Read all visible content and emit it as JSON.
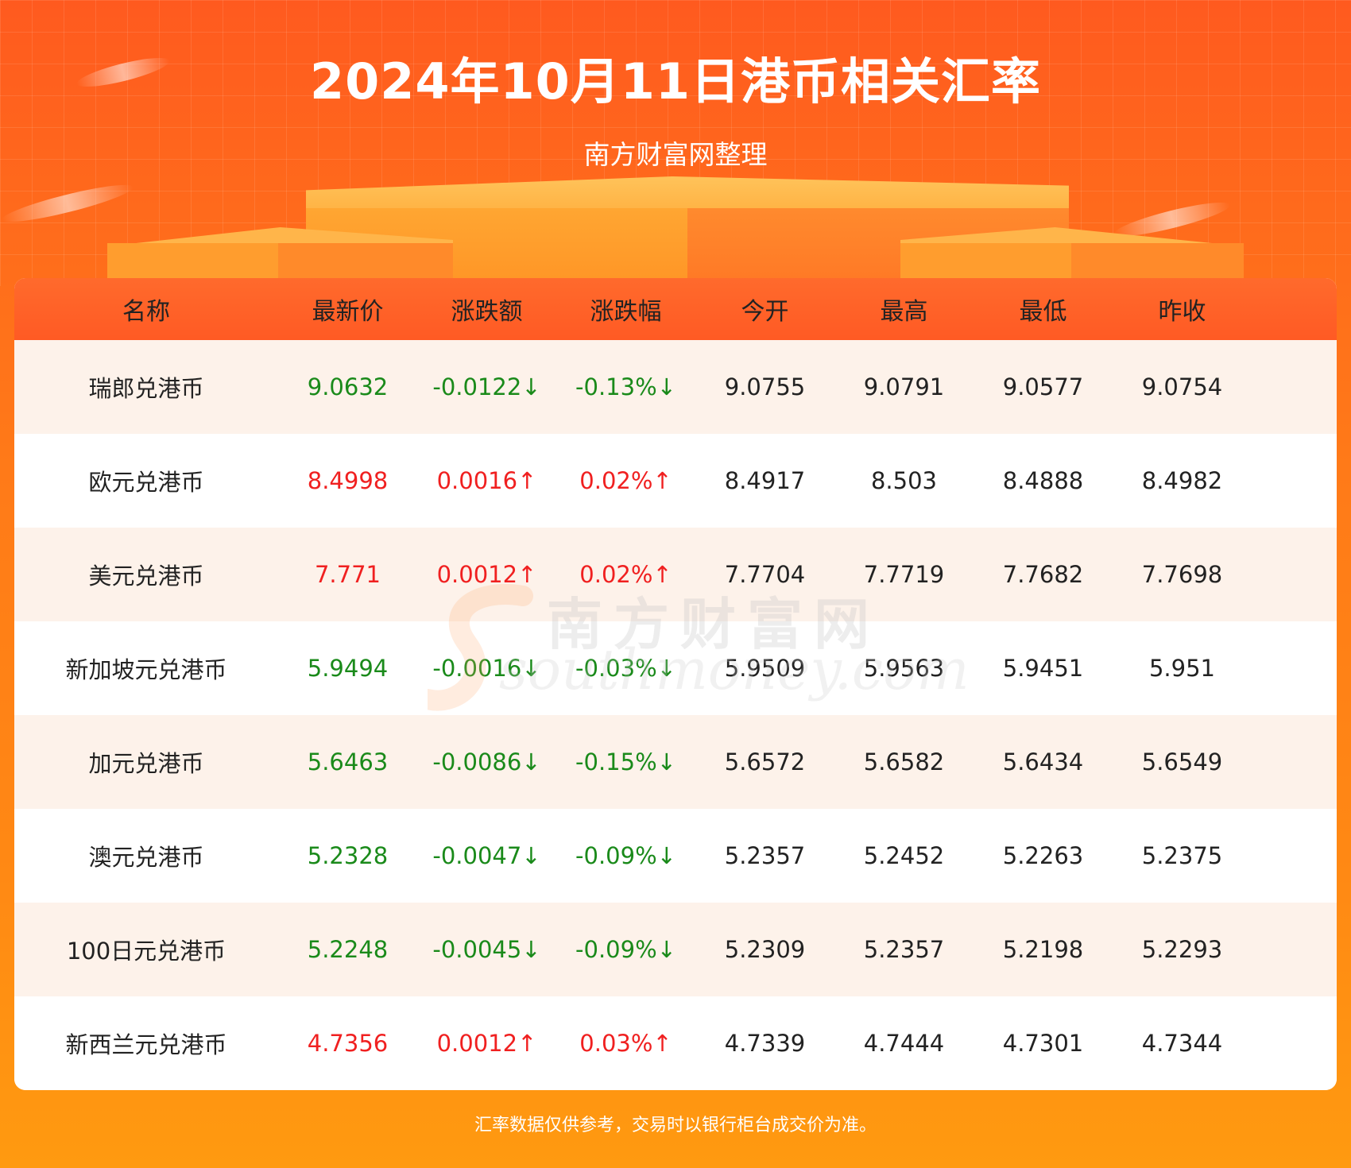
{
  "header": {
    "title": "2024年10月11日港币相关汇率",
    "subtitle": "南方财富网整理"
  },
  "table": {
    "columns": [
      "名称",
      "最新价",
      "涨跌额",
      "涨跌幅",
      "今开",
      "最高",
      "最低",
      "昨收"
    ],
    "rows": [
      {
        "name": "瑞郎兑港币",
        "latest": "9.0632",
        "change": "-0.0122↓",
        "change_pct": "-0.13%↓",
        "open": "9.0755",
        "high": "9.0791",
        "low": "9.0577",
        "prev_close": "9.0754",
        "trend": "down"
      },
      {
        "name": "欧元兑港币",
        "latest": "8.4998",
        "change": "0.0016↑",
        "change_pct": "0.02%↑",
        "open": "8.4917",
        "high": "8.503",
        "low": "8.4888",
        "prev_close": "8.4982",
        "trend": "up"
      },
      {
        "name": "美元兑港币",
        "latest": "7.771",
        "change": "0.0012↑",
        "change_pct": "0.02%↑",
        "open": "7.7704",
        "high": "7.7719",
        "low": "7.7682",
        "prev_close": "7.7698",
        "trend": "up"
      },
      {
        "name": "新加坡元兑港币",
        "latest": "5.9494",
        "change": "-0.0016↓",
        "change_pct": "-0.03%↓",
        "open": "5.9509",
        "high": "5.9563",
        "low": "5.9451",
        "prev_close": "5.951",
        "trend": "down"
      },
      {
        "name": "加元兑港币",
        "latest": "5.6463",
        "change": "-0.0086↓",
        "change_pct": "-0.15%↓",
        "open": "5.6572",
        "high": "5.6582",
        "low": "5.6434",
        "prev_close": "5.6549",
        "trend": "down"
      },
      {
        "name": "澳元兑港币",
        "latest": "5.2328",
        "change": "-0.0047↓",
        "change_pct": "-0.09%↓",
        "open": "5.2357",
        "high": "5.2452",
        "low": "5.2263",
        "prev_close": "5.2375",
        "trend": "down"
      },
      {
        "name": "100日元兑港币",
        "latest": "5.2248",
        "change": "-0.0045↓",
        "change_pct": "-0.09%↓",
        "open": "5.2309",
        "high": "5.2357",
        "low": "5.2198",
        "prev_close": "5.2293",
        "trend": "down"
      },
      {
        "name": "新西兰元兑港币",
        "latest": "4.7356",
        "change": "0.0012↑",
        "change_pct": "0.03%↑",
        "open": "4.7339",
        "high": "4.7444",
        "low": "4.7301",
        "prev_close": "4.7344",
        "trend": "up"
      }
    ]
  },
  "watermark": {
    "cn": "南方财富网",
    "en": "southmoney.com"
  },
  "footer": {
    "note": "汇率数据仅供参考，交易时以银行柜台成交价为准。"
  },
  "colors": {
    "up": "#f02020",
    "down": "#1a8a1a",
    "header_bg": "#ff5a24",
    "odd_row": "#fdf2ea"
  }
}
